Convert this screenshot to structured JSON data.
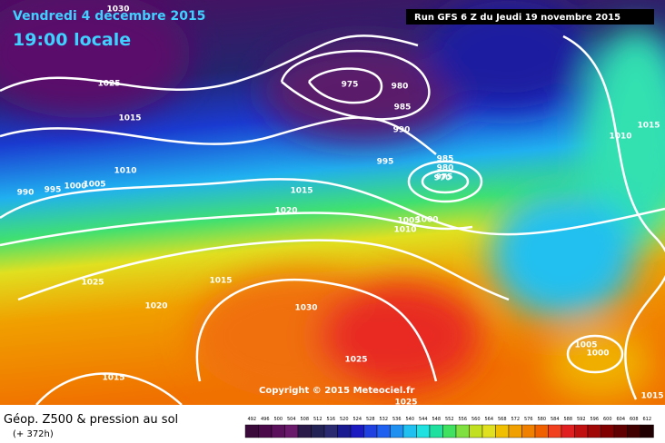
{
  "header": {
    "date": "Vendredi 4 décembre 2015",
    "time": "19:00 locale",
    "run": "Run GFS 6 Z du Jeudi 19 novembre 2015",
    "copyright": "Copyright © 2015 Meteociel.fr"
  },
  "isobar_labels": [
    "1030",
    "1025",
    "1015",
    "1010",
    "990",
    "995",
    "1000",
    "1005",
    "975",
    "980",
    "985",
    "990",
    "995",
    "985",
    "980",
    "975",
    "970",
    "1015",
    "1020",
    "1005",
    "1000",
    "1010",
    "1025",
    "1015",
    "1020",
    "1030",
    "1025",
    "1015",
    "1025",
    "1015",
    "1010",
    "1005",
    "1000",
    "1015"
  ],
  "footer": {
    "title": "Géop. Z500 & pression au sol",
    "subtitle": "(+ 372h)"
  },
  "legend": {
    "labels": [
      492,
      496,
      500,
      504,
      508,
      512,
      516,
      520,
      524,
      528,
      532,
      536,
      540,
      544,
      548,
      552,
      556,
      560,
      564,
      568,
      572,
      576,
      580,
      584,
      588,
      592,
      596,
      600,
      604,
      608,
      612
    ],
    "colors": [
      "#3a0a3a",
      "#4a0a4a",
      "#5a105a",
      "#6a1a6a",
      "#2a1a4a",
      "#222255",
      "#2a2a70",
      "#1a1a90",
      "#1a1ac0",
      "#2040e0",
      "#2060f0",
      "#2090f0",
      "#20c0f0",
      "#20e0e0",
      "#20e0a0",
      "#40e060",
      "#80e040",
      "#c0e020",
      "#e0e020",
      "#f0c000",
      "#f0a000",
      "#f08000",
      "#f06000",
      "#f04020",
      "#e02020",
      "#c01010",
      "#a00808",
      "#800000",
      "#600000",
      "#400000",
      "#200000"
    ]
  }
}
